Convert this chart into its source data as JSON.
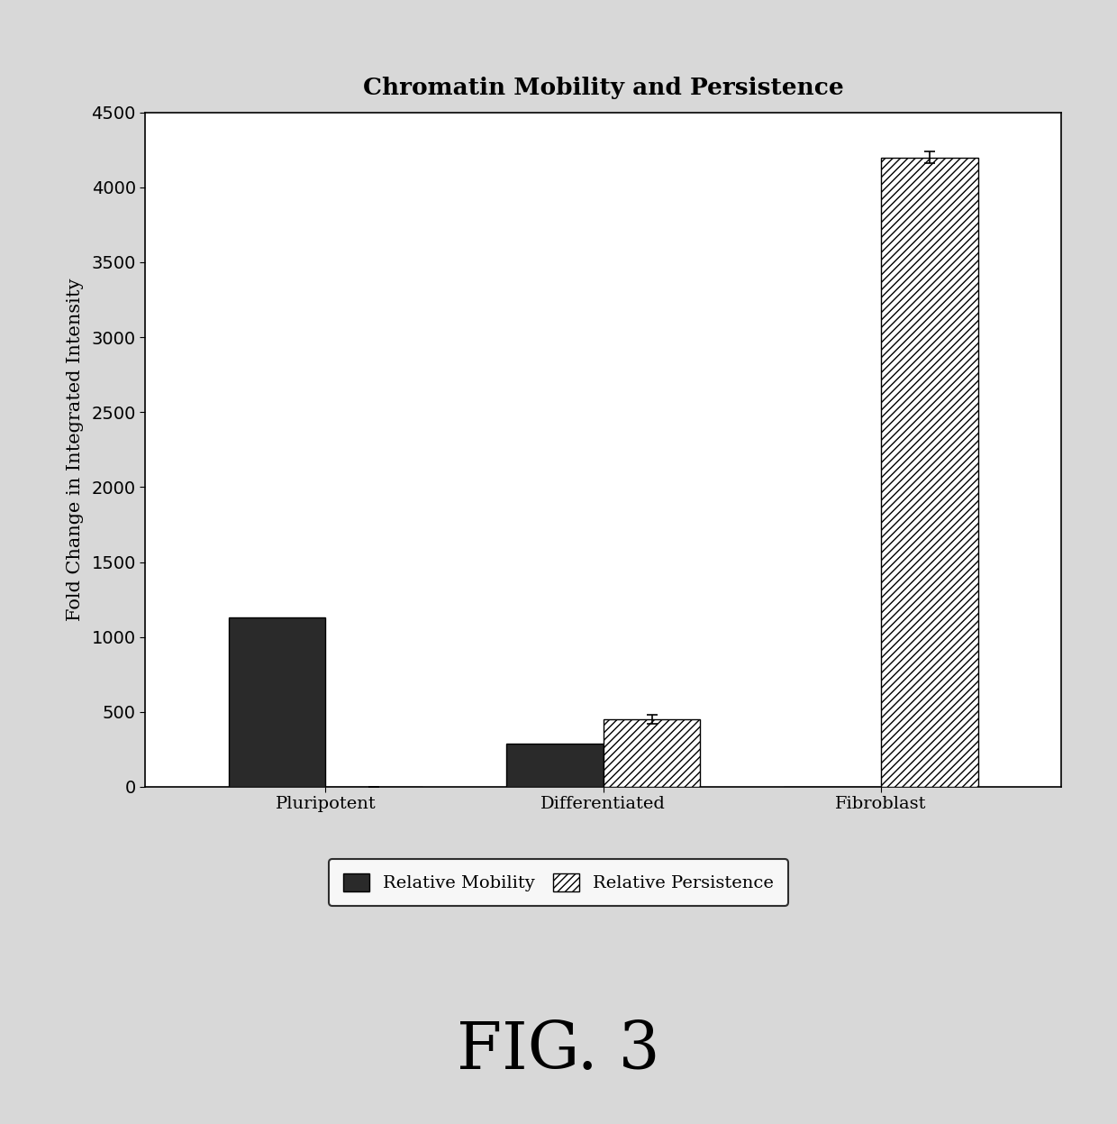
{
  "title": "Chromatin Mobility and Persistence",
  "ylabel": "Fold Change in Integrated Intensity",
  "categories": [
    "Pluripotent",
    "Differentiated",
    "Fibroblast"
  ],
  "mobility_values": [
    1130,
    290,
    0
  ],
  "persistence_values": [
    0,
    450,
    4200
  ],
  "mobility_errors": [
    0,
    0,
    0
  ],
  "persistence_errors": [
    0,
    30,
    40
  ],
  "ylim": [
    0,
    4500
  ],
  "yticks": [
    0,
    500,
    1000,
    1500,
    2000,
    2500,
    3000,
    3500,
    4000,
    4500
  ],
  "bar_width": 0.35,
  "mobility_color": "#2a2a2a",
  "persistence_color": "#ffffff",
  "persistence_hatch": "////",
  "outer_background_color": "#d8d8d8",
  "plot_background_color": "#ffffff",
  "fig_caption": "FIG. 3",
  "title_fontsize": 19,
  "axis_label_fontsize": 15,
  "tick_fontsize": 14,
  "legend_fontsize": 14,
  "caption_fontsize": 52
}
